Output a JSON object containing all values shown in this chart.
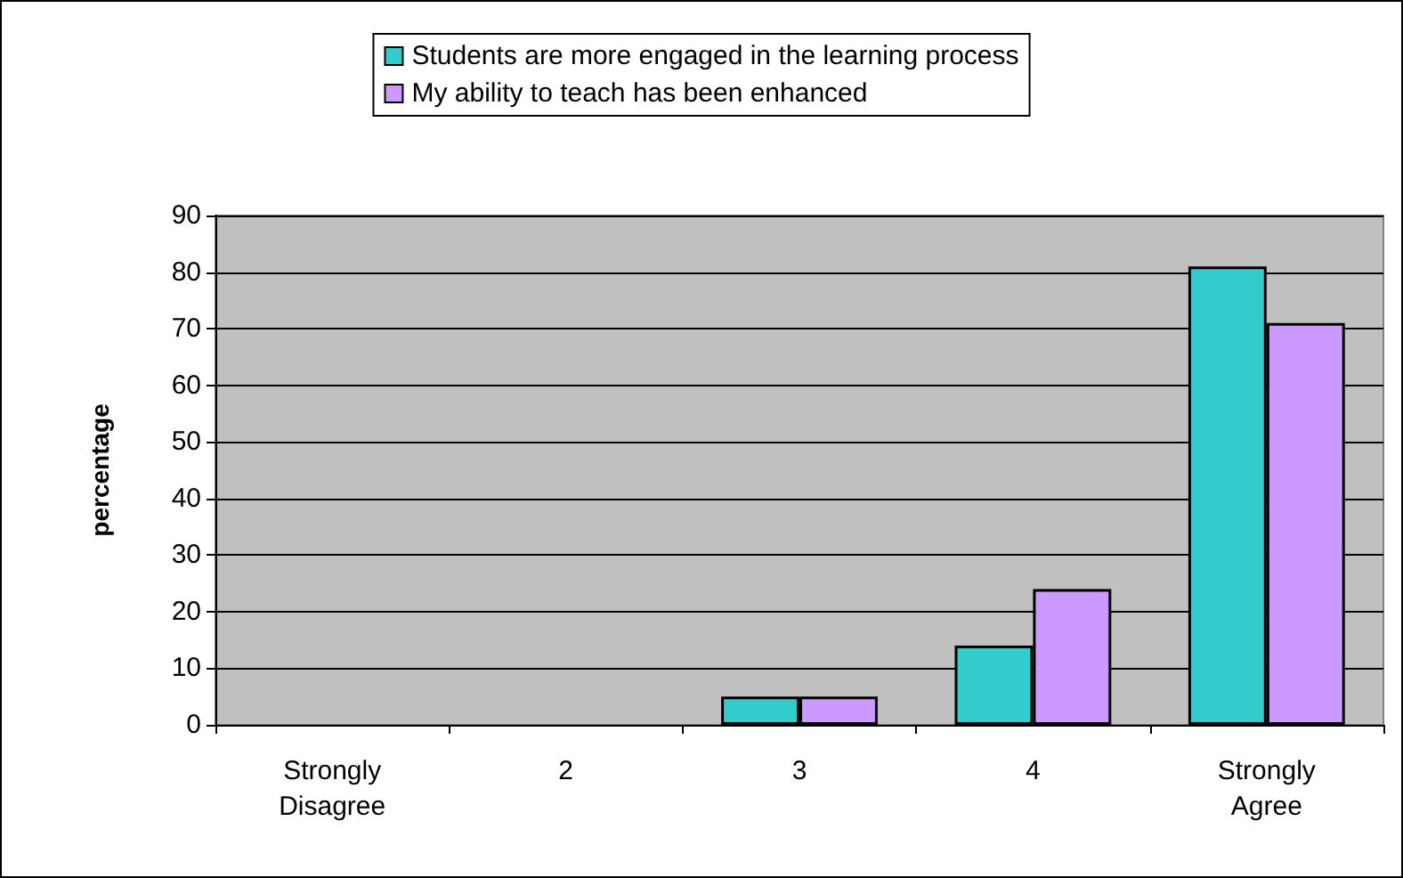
{
  "chart_data": {
    "type": "bar",
    "ylabel": "percentage",
    "categories": [
      "Strongly\nDisagree",
      "2",
      "3",
      "4",
      "Strongly\nAgree"
    ],
    "series": [
      {
        "name": "Students are more engaged in the learning process",
        "color": "#33cccc",
        "values": [
          0,
          0,
          5,
          14,
          81
        ]
      },
      {
        "name": "My ability to teach has been enhanced",
        "color": "#cc99ff",
        "values": [
          0,
          0,
          5,
          24,
          71
        ]
      }
    ],
    "ylim": [
      0,
      90
    ],
    "yticks": [
      0,
      10,
      20,
      30,
      40,
      50,
      60,
      70,
      80,
      90
    ],
    "grid": "y",
    "legend": "top"
  }
}
